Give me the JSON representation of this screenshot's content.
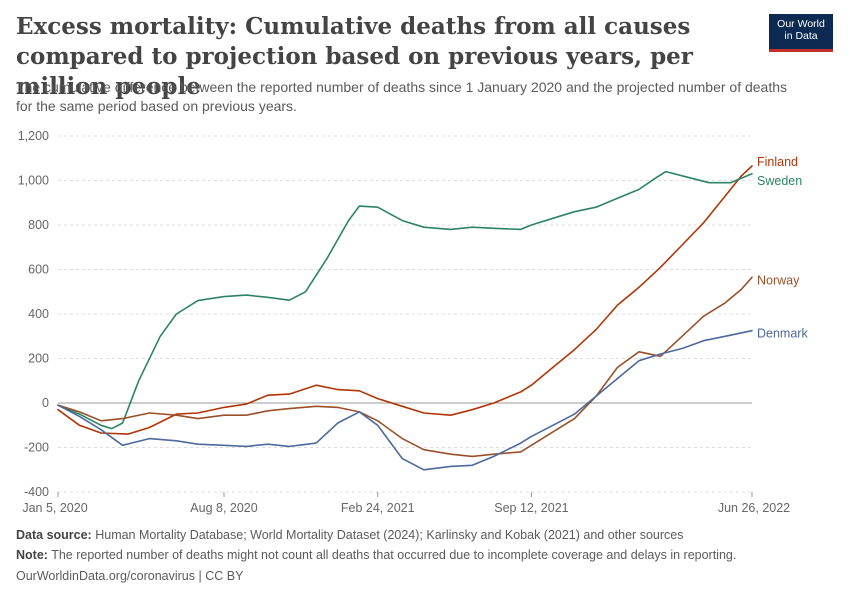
{
  "header": {
    "title": "Excess mortality: Cumulative deaths from all causes compared to projection based on previous years, per million people",
    "subtitle": "The cumulative difference between the reported number of deaths since 1 January 2020 and the projected number of deaths for the same period based on previous years.",
    "logo_line1": "Our World",
    "logo_line2": "in Data"
  },
  "footer": {
    "source_label": "Data source:",
    "source_text": "Human Mortality Database; World Mortality Dataset (2024); Karlinsky and Kobak (2021) and other sources",
    "note_label": "Note:",
    "note_text": "The reported number of deaths might not count all deaths that occurred due to incomplete coverage and delays in reporting.",
    "credit": "OurWorldinData.org/coronavirus | CC BY"
  },
  "chart_data": {
    "type": "line",
    "xlim": [
      "2020-01-05",
      "2022-06-26"
    ],
    "ylim": [
      -400,
      1200
    ],
    "y_ticks": [
      -400,
      -200,
      0,
      200,
      400,
      600,
      800,
      1000,
      1200
    ],
    "y_tick_labels": [
      "-400",
      "-200",
      "0",
      "200",
      "400",
      "600",
      "800",
      "1,000",
      "1,200"
    ],
    "x_ticks": [
      "2020-01-05",
      "2020-08-08",
      "2021-02-24",
      "2021-09-12",
      "2022-06-26"
    ],
    "x_tick_labels": [
      "Jan 5, 2020",
      "Aug 8, 2020",
      "Feb 24, 2021",
      "Sep 12, 2021",
      "Jun 26, 2022"
    ],
    "grid": true,
    "legend": "line-end labels",
    "series": [
      {
        "name": "Finland",
        "color": "#b13507",
        "points": [
          [
            "2020-01-05",
            -30
          ],
          [
            "2020-02-02",
            -100
          ],
          [
            "2020-03-01",
            -135
          ],
          [
            "2020-04-05",
            -140
          ],
          [
            "2020-05-03",
            -110
          ],
          [
            "2020-06-07",
            -50
          ],
          [
            "2020-07-05",
            -45
          ],
          [
            "2020-08-08",
            -20
          ],
          [
            "2020-09-06",
            -5
          ],
          [
            "2020-10-04",
            35
          ],
          [
            "2020-11-01",
            40
          ],
          [
            "2020-12-06",
            80
          ],
          [
            "2021-01-03",
            60
          ],
          [
            "2021-01-31",
            55
          ],
          [
            "2021-02-24",
            20
          ],
          [
            "2021-03-28",
            -15
          ],
          [
            "2021-04-25",
            -45
          ],
          [
            "2021-05-30",
            -55
          ],
          [
            "2021-06-27",
            -30
          ],
          [
            "2021-07-25",
            0
          ],
          [
            "2021-08-29",
            50
          ],
          [
            "2021-09-12",
            80
          ],
          [
            "2021-10-10",
            160
          ],
          [
            "2021-11-07",
            240
          ],
          [
            "2021-12-05",
            330
          ],
          [
            "2022-01-02",
            440
          ],
          [
            "2022-01-30",
            520
          ],
          [
            "2022-02-27",
            610
          ],
          [
            "2022-03-27",
            710
          ],
          [
            "2022-04-24",
            810
          ],
          [
            "2022-05-22",
            930
          ],
          [
            "2022-06-12",
            1020
          ],
          [
            "2022-06-26",
            1065
          ]
        ]
      },
      {
        "name": "Sweden",
        "color": "#2c8465",
        "points": [
          [
            "2020-01-05",
            -10
          ],
          [
            "2020-02-02",
            -50
          ],
          [
            "2020-03-01",
            -100
          ],
          [
            "2020-03-15",
            -115
          ],
          [
            "2020-03-29",
            -90
          ],
          [
            "2020-04-19",
            100
          ],
          [
            "2020-05-17",
            300
          ],
          [
            "2020-06-07",
            400
          ],
          [
            "2020-07-05",
            460
          ],
          [
            "2020-08-08",
            478
          ],
          [
            "2020-09-06",
            485
          ],
          [
            "2020-10-04",
            475
          ],
          [
            "2020-11-01",
            462
          ],
          [
            "2020-11-22",
            500
          ],
          [
            "2020-12-20",
            650
          ],
          [
            "2021-01-17",
            820
          ],
          [
            "2021-01-31",
            885
          ],
          [
            "2021-02-24",
            880
          ],
          [
            "2021-03-28",
            820
          ],
          [
            "2021-04-25",
            790
          ],
          [
            "2021-05-30",
            780
          ],
          [
            "2021-06-27",
            790
          ],
          [
            "2021-07-25",
            785
          ],
          [
            "2021-08-29",
            780
          ],
          [
            "2021-09-12",
            800
          ],
          [
            "2021-10-10",
            830
          ],
          [
            "2021-11-07",
            860
          ],
          [
            "2021-12-05",
            880
          ],
          [
            "2022-01-02",
            920
          ],
          [
            "2022-01-30",
            960
          ],
          [
            "2022-02-20",
            1010
          ],
          [
            "2022-03-06",
            1040
          ],
          [
            "2022-04-03",
            1015
          ],
          [
            "2022-05-01",
            990
          ],
          [
            "2022-05-29",
            990
          ],
          [
            "2022-06-26",
            1030
          ]
        ]
      },
      {
        "name": "Norway",
        "color": "#9a5129",
        "points": [
          [
            "2020-01-05",
            -10
          ],
          [
            "2020-02-02",
            -40
          ],
          [
            "2020-03-01",
            -80
          ],
          [
            "2020-03-29",
            -70
          ],
          [
            "2020-05-03",
            -45
          ],
          [
            "2020-06-07",
            -55
          ],
          [
            "2020-07-05",
            -70
          ],
          [
            "2020-08-08",
            -55
          ],
          [
            "2020-09-06",
            -55
          ],
          [
            "2020-10-04",
            -35
          ],
          [
            "2020-11-01",
            -25
          ],
          [
            "2020-12-06",
            -15
          ],
          [
            "2021-01-03",
            -20
          ],
          [
            "2021-01-31",
            -40
          ],
          [
            "2021-02-24",
            -80
          ],
          [
            "2021-03-28",
            -160
          ],
          [
            "2021-04-25",
            -210
          ],
          [
            "2021-05-30",
            -230
          ],
          [
            "2021-06-27",
            -240
          ],
          [
            "2021-07-25",
            -230
          ],
          [
            "2021-08-29",
            -220
          ],
          [
            "2021-09-12",
            -190
          ],
          [
            "2021-10-10",
            -130
          ],
          [
            "2021-11-07",
            -70
          ],
          [
            "2021-12-05",
            30
          ],
          [
            "2022-01-02",
            160
          ],
          [
            "2022-01-30",
            230
          ],
          [
            "2022-02-27",
            210
          ],
          [
            "2022-03-27",
            300
          ],
          [
            "2022-04-24",
            390
          ],
          [
            "2022-05-22",
            450
          ],
          [
            "2022-06-12",
            510
          ],
          [
            "2022-06-26",
            565
          ]
        ]
      },
      {
        "name": "Denmark",
        "color": "#4c6a9c",
        "points": [
          [
            "2020-01-05",
            -10
          ],
          [
            "2020-02-02",
            -60
          ],
          [
            "2020-03-01",
            -120
          ],
          [
            "2020-03-29",
            -190
          ],
          [
            "2020-05-03",
            -160
          ],
          [
            "2020-06-07",
            -170
          ],
          [
            "2020-07-05",
            -185
          ],
          [
            "2020-08-08",
            -190
          ],
          [
            "2020-09-06",
            -195
          ],
          [
            "2020-10-04",
            -185
          ],
          [
            "2020-11-01",
            -195
          ],
          [
            "2020-12-06",
            -180
          ],
          [
            "2021-01-03",
            -90
          ],
          [
            "2021-01-31",
            -40
          ],
          [
            "2021-02-24",
            -100
          ],
          [
            "2021-03-28",
            -250
          ],
          [
            "2021-04-25",
            -300
          ],
          [
            "2021-05-30",
            -285
          ],
          [
            "2021-06-27",
            -280
          ],
          [
            "2021-07-25",
            -240
          ],
          [
            "2021-08-29",
            -180
          ],
          [
            "2021-09-12",
            -150
          ],
          [
            "2021-10-10",
            -100
          ],
          [
            "2021-11-07",
            -50
          ],
          [
            "2021-12-05",
            30
          ],
          [
            "2022-01-02",
            110
          ],
          [
            "2022-01-30",
            190
          ],
          [
            "2022-02-27",
            220
          ],
          [
            "2022-03-27",
            245
          ],
          [
            "2022-04-24",
            280
          ],
          [
            "2022-05-22",
            300
          ],
          [
            "2022-06-26",
            325
          ]
        ]
      }
    ]
  }
}
